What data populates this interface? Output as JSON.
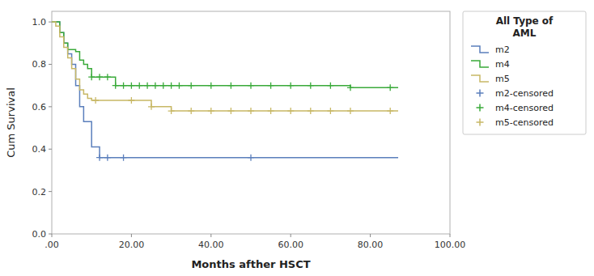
{
  "chart_data": {
    "type": "line",
    "title": "All Type of\nAML",
    "x_label": "Months afther HSCT",
    "y_label": "Cum Survival",
    "xlim": [
      0,
      100
    ],
    "ylim": [
      0.0,
      1.05
    ],
    "xticks": [
      {
        "value": 0,
        "label": ".00"
      },
      {
        "value": 20,
        "label": "20.00"
      },
      {
        "value": 40,
        "label": "40.00"
      },
      {
        "value": 60,
        "label": "60.00"
      },
      {
        "value": 80,
        "label": "80.00"
      },
      {
        "value": 100,
        "label": "100.00"
      }
    ],
    "yticks": [
      {
        "value": 0.0,
        "label": "0.0"
      },
      {
        "value": 0.2,
        "label": "0.2"
      },
      {
        "value": 0.4,
        "label": "0.4"
      },
      {
        "value": 0.6,
        "label": "0.6"
      },
      {
        "value": 0.8,
        "label": "0.8"
      },
      {
        "value": 1.0,
        "label": "1.0"
      }
    ],
    "grid": false,
    "legend": "right",
    "series": [
      {
        "name": "m2",
        "type": "line",
        "line_style": "step",
        "color": "#5b7fbc",
        "x": [
          0,
          1,
          2,
          3,
          4,
          5,
          6,
          7,
          8,
          9,
          10,
          12,
          14,
          50,
          87
        ],
        "values": [
          1.0,
          1.0,
          0.95,
          0.9,
          0.85,
          0.8,
          0.7,
          0.6,
          0.53,
          0.53,
          0.41,
          0.36,
          0.36,
          0.36,
          0.36
        ]
      },
      {
        "name": "m4",
        "type": "line",
        "line_style": "step",
        "color": "#3aaa3a",
        "x": [
          0,
          0.5,
          2,
          3,
          4,
          5,
          6,
          7,
          8,
          9,
          10,
          12,
          14,
          16,
          18,
          20,
          22,
          24,
          26,
          28,
          30,
          35,
          40,
          45,
          50,
          55,
          60,
          65,
          70,
          75,
          87
        ],
        "values": [
          1.0,
          1.0,
          0.95,
          0.9,
          0.87,
          0.87,
          0.86,
          0.82,
          0.8,
          0.78,
          0.74,
          0.74,
          0.74,
          0.7,
          0.7,
          0.7,
          0.7,
          0.7,
          0.7,
          0.7,
          0.7,
          0.7,
          0.7,
          0.7,
          0.7,
          0.7,
          0.7,
          0.7,
          0.7,
          0.69,
          0.69
        ]
      },
      {
        "name": "m5",
        "type": "line",
        "line_style": "step",
        "color": "#c8b866",
        "x": [
          0,
          1,
          2,
          3,
          4,
          5,
          6,
          7,
          8,
          9,
          10,
          11,
          20,
          25,
          30,
          35,
          40,
          45,
          50,
          55,
          60,
          65,
          70,
          75,
          87
        ],
        "values": [
          1.0,
          0.98,
          0.93,
          0.88,
          0.83,
          0.78,
          0.73,
          0.68,
          0.66,
          0.64,
          0.63,
          0.63,
          0.63,
          0.6,
          0.58,
          0.58,
          0.58,
          0.58,
          0.58,
          0.58,
          0.58,
          0.58,
          0.58,
          0.58,
          0.58
        ]
      },
      {
        "name": "m2-censored",
        "type": "scatter",
        "marker": "+",
        "color": "#5b7fbc",
        "x": [
          12,
          14,
          18,
          50
        ],
        "values": [
          0.36,
          0.36,
          0.36,
          0.36
        ]
      },
      {
        "name": "m4-censored",
        "type": "scatter",
        "marker": "+",
        "color": "#3aaa3a",
        "x": [
          10,
          12,
          14,
          16,
          18,
          20,
          22,
          24,
          26,
          28,
          30,
          32,
          35,
          40,
          45,
          50,
          55,
          60,
          65,
          70,
          75,
          85
        ],
        "values": [
          0.74,
          0.74,
          0.74,
          0.7,
          0.7,
          0.7,
          0.7,
          0.7,
          0.7,
          0.7,
          0.7,
          0.7,
          0.7,
          0.7,
          0.7,
          0.7,
          0.7,
          0.7,
          0.7,
          0.7,
          0.69,
          0.69
        ]
      },
      {
        "name": "m5-censored",
        "type": "scatter",
        "marker": "+",
        "color": "#c8b866",
        "x": [
          11,
          20,
          25,
          30,
          35,
          40,
          45,
          50,
          55,
          60,
          65,
          70,
          75,
          85
        ],
        "values": [
          0.63,
          0.63,
          0.6,
          0.58,
          0.58,
          0.58,
          0.58,
          0.58,
          0.58,
          0.58,
          0.58,
          0.58,
          0.58,
          0.58
        ]
      }
    ]
  }
}
